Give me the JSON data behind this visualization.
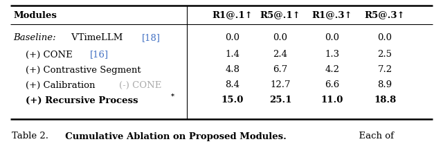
{
  "col_headers": [
    "Modules",
    "R1@.1↑",
    "R5@.1↑",
    "R1@.3↑",
    "R5@.3↑"
  ],
  "rows": [
    {
      "module_text": "Baseline: VTimeLLM [18]",
      "module_segments": [
        {
          "text": "Baseline:",
          "style": "italic",
          "color": "#000000"
        },
        {
          "text": " VTimeLLM ",
          "style": "normal",
          "color": "#000000"
        },
        {
          "text": "[18]",
          "style": "normal",
          "color": "#4472C4"
        }
      ],
      "values": [
        "0.0",
        "0.0",
        "0.0",
        "0.0"
      ],
      "bold": false,
      "indent": 0
    },
    {
      "module_text": "(+) CONE [16]",
      "module_segments": [
        {
          "text": "(+) CONE ",
          "style": "normal",
          "color": "#000000"
        },
        {
          "text": "[16]",
          "style": "normal",
          "color": "#4472C4"
        }
      ],
      "values": [
        "1.4",
        "2.4",
        "1.3",
        "2.5"
      ],
      "bold": false,
      "indent": 1
    },
    {
      "module_text": "(+) Contrastive Segment",
      "module_segments": [
        {
          "text": "(+) Contrastive Segment",
          "style": "normal",
          "color": "#000000"
        }
      ],
      "values": [
        "4.8",
        "6.7",
        "4.2",
        "7.2"
      ],
      "bold": false,
      "indent": 1
    },
    {
      "module_text": "(+) Calibration (-) CONE",
      "module_segments": [
        {
          "text": "(+) Calibration ",
          "style": "normal",
          "color": "#000000"
        },
        {
          "text": "(-) CONE",
          "style": "normal",
          "color": "#AAAAAA"
        }
      ],
      "values": [
        "8.4",
        "12.7",
        "6.6",
        "8.9"
      ],
      "bold": false,
      "indent": 1
    },
    {
      "module_text": "(+) Recursive Process*",
      "module_segments": [
        {
          "text": "(+) Recursive Process",
          "style": "normal",
          "color": "#000000"
        },
        {
          "text": "*",
          "style": "super",
          "color": "#000000"
        }
      ],
      "values": [
        "15.0",
        "25.1",
        "11.0",
        "18.8"
      ],
      "bold": true,
      "indent": 1
    }
  ],
  "caption_parts": [
    {
      "text": "Table 2.",
      "bold": false
    },
    {
      "text": "  Cumulative Ablation on Proposed Modules.",
      "bold": true
    },
    {
      "text": "  Each of",
      "bold": false
    }
  ],
  "background_color": "#FFFFFF",
  "font_size": 9.5,
  "header_font_size": 9.5,
  "caption_font_size": 9.5
}
